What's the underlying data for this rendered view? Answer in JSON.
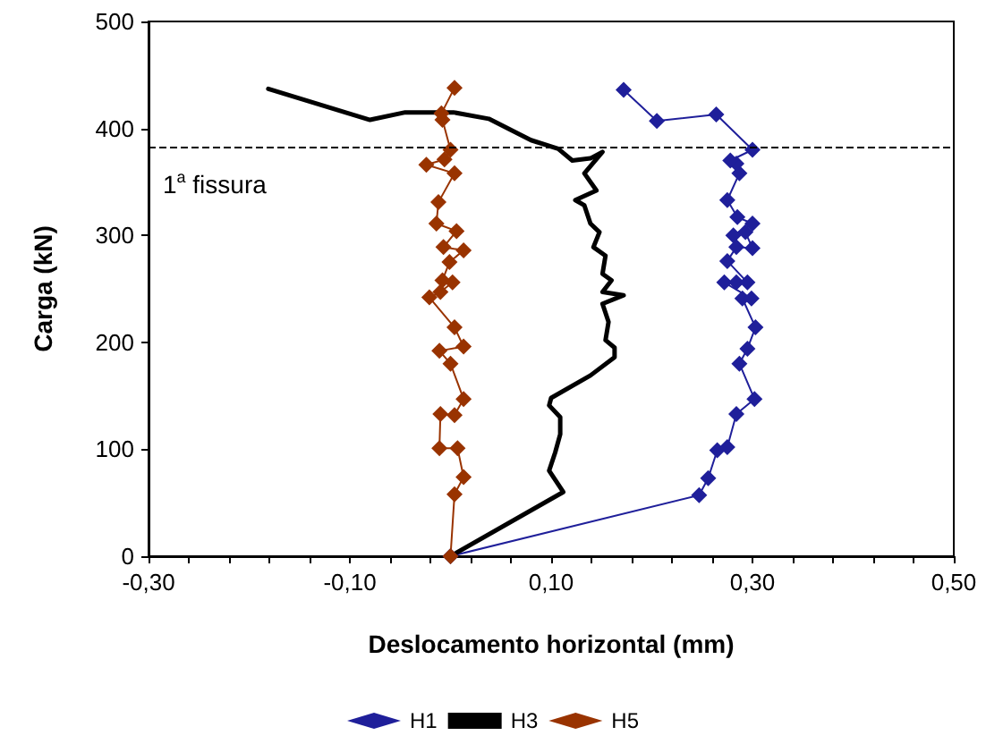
{
  "chart_data": {
    "type": "line",
    "xlabel": "Deslocamento horizontal (mm)",
    "ylabel": "Carga (kN)",
    "xlim": [
      -0.3,
      0.5
    ],
    "ylim": [
      0,
      500
    ],
    "xticks": [
      {
        "value": -0.3,
        "label": "-0,30"
      },
      {
        "value": -0.26,
        "label": null
      },
      {
        "value": -0.22,
        "label": null
      },
      {
        "value": -0.18,
        "label": null
      },
      {
        "value": -0.14,
        "label": null
      },
      {
        "value": -0.1,
        "label": "-0,10"
      },
      {
        "value": -0.06,
        "label": null
      },
      {
        "value": -0.02,
        "label": null
      },
      {
        "value": 0.02,
        "label": null
      },
      {
        "value": 0.06,
        "label": null
      },
      {
        "value": 0.1,
        "label": "0,10"
      },
      {
        "value": 0.14,
        "label": null
      },
      {
        "value": 0.18,
        "label": null
      },
      {
        "value": 0.22,
        "label": null
      },
      {
        "value": 0.26,
        "label": null
      },
      {
        "value": 0.3,
        "label": "0,30"
      },
      {
        "value": 0.34,
        "label": null
      },
      {
        "value": 0.38,
        "label": null
      },
      {
        "value": 0.42,
        "label": null
      },
      {
        "value": 0.46,
        "label": null
      },
      {
        "value": 0.5,
        "label": "0,50"
      }
    ],
    "yticks": [
      0,
      100,
      200,
      300,
      400,
      500
    ],
    "grid": false,
    "legend": "bottom",
    "line_style": "solid",
    "ref_lines": [
      {
        "axis": "y",
        "value": 382,
        "label": "1$^{a}$ fissura",
        "color": "#000000",
        "line_style": "dashed"
      }
    ],
    "series": [
      {
        "name": "H1",
        "color": "#1f1f9a",
        "marker": "diamond",
        "x": [
          0,
          0.247,
          0.256,
          0.265,
          0.275,
          0.284,
          0.302,
          0.287,
          0.295,
          0.303,
          0.29,
          0.299,
          0.272,
          0.284,
          0.295,
          0.275,
          0.284,
          0.3,
          0.293,
          0.281,
          0.3,
          0.285,
          0.275,
          0.287,
          0.284,
          0.278,
          0.3,
          0.264,
          0.205,
          0.172
        ],
        "values": [
          0,
          57,
          73,
          99,
          102,
          133,
          147,
          180,
          194,
          214,
          241,
          241,
          256,
          256,
          256,
          276,
          289,
          288,
          303,
          300,
          311,
          317,
          333,
          358,
          367,
          370,
          380,
          413,
          407,
          436
        ]
      },
      {
        "name": "H3",
        "color": "#000000",
        "marker": "none",
        "x": [
          0,
          0.112,
          0.098,
          0.104,
          0.109,
          0.109,
          0.098,
          0.1,
          0.139,
          0.163,
          0.163,
          0.154,
          0.157,
          0.151,
          0.172,
          0.151,
          0.16,
          0.151,
          0.154,
          0.142,
          0.148,
          0.139,
          0.133,
          0.124,
          0.145,
          0.133,
          0.151,
          0.139,
          0.121,
          0.107,
          0.08,
          0.038,
          0.003,
          -0.045,
          -0.08,
          -0.181
        ],
        "values": [
          0,
          60,
          80,
          97,
          114,
          130,
          141,
          148,
          169,
          186,
          195,
          202,
          219,
          236,
          244,
          247,
          258,
          264,
          281,
          289,
          303,
          311,
          328,
          333,
          342,
          358,
          378,
          372,
          370,
          381,
          389,
          409,
          415,
          415,
          408,
          437
        ]
      },
      {
        "name": "H5",
        "color": "#993300",
        "marker": "diamond",
        "x": [
          0,
          0.004,
          0.013,
          0.007,
          -0.011,
          -0.01,
          0.004,
          0.013,
          0,
          -0.011,
          0.013,
          0.004,
          -0.021,
          -0.01,
          0.002,
          -0.008,
          -0.001,
          0.013,
          -0.007,
          0.006,
          -0.014,
          -0.012,
          0.004,
          -0.024,
          -0.006,
          0,
          -0.008,
          -0.009,
          0.004
        ],
        "values": [
          0,
          58,
          74,
          101,
          101,
          133,
          132,
          147,
          180,
          192,
          196,
          214,
          242,
          247,
          256,
          258,
          275,
          286,
          289,
          304,
          311,
          331,
          358,
          366,
          371,
          380,
          408,
          414,
          438
        ]
      }
    ]
  }
}
